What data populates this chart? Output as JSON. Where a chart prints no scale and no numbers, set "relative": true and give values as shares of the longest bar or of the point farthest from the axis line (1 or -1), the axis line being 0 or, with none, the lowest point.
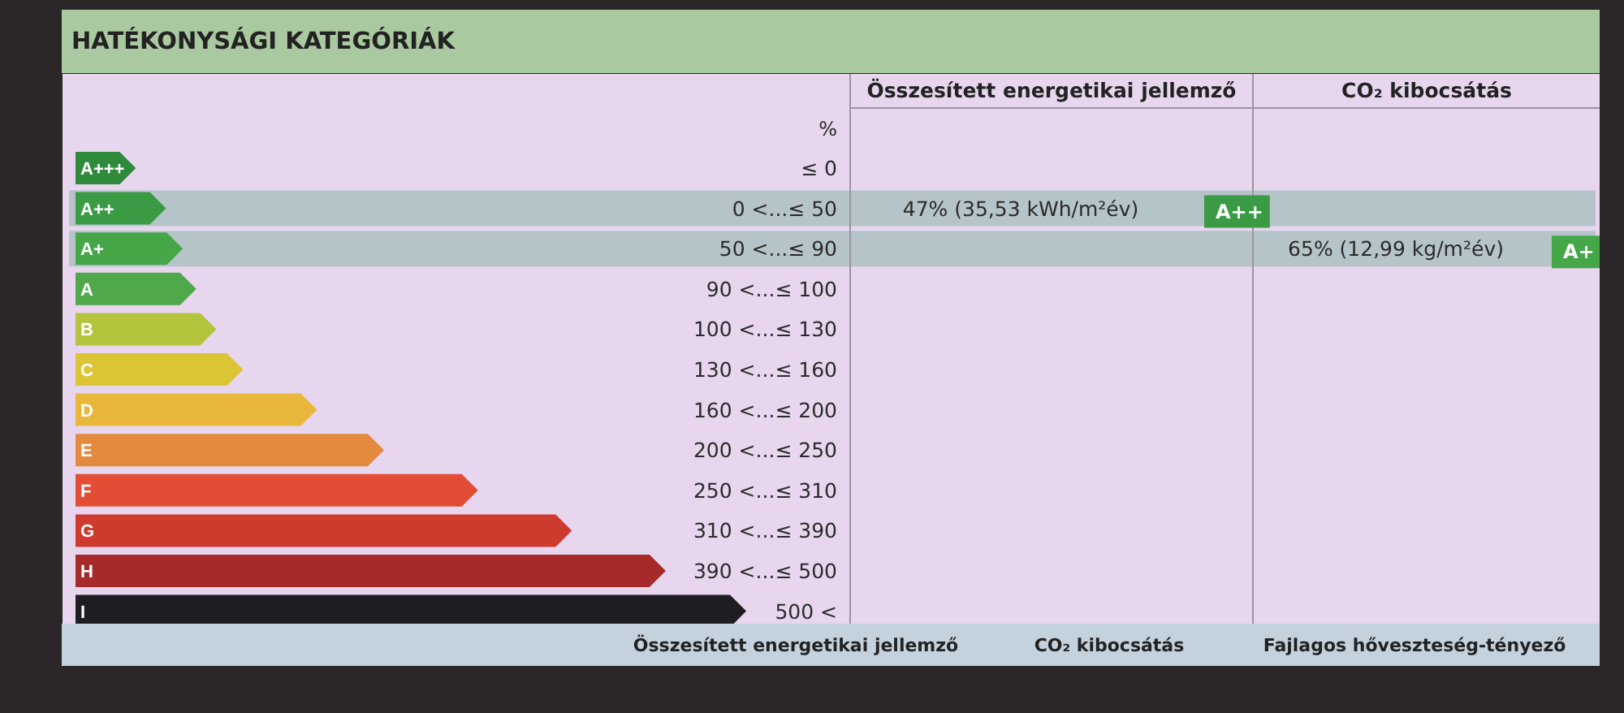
{
  "chart_data": {
    "type": "bar",
    "orientation": "horizontal",
    "relative": true,
    "title": "HATÉKONYSÁGI KATEGÓRIÁK",
    "categories": [
      "A+++",
      "A++",
      "A+",
      "A",
      "B",
      "C",
      "D",
      "E",
      "F",
      "G",
      "H",
      "I"
    ],
    "values": [
      0.09,
      0.135,
      0.16,
      0.18,
      0.21,
      0.25,
      0.36,
      0.46,
      0.6,
      0.74,
      0.88,
      1
    ],
    "colors": [
      "#2f8a3c",
      "#3a9b44",
      "#45a748",
      "#4fa84a",
      "#b3c43c",
      "#dcc535",
      "#e9b83a",
      "#e38a3f",
      "#e44d35",
      "#cf3a2f",
      "#a62a2a",
      "#1f1d22"
    ],
    "bands": [
      {
        "axis": "y",
        "from": "A++",
        "to": "A++",
        "label": "47% (35,53 kWh/m²év)",
        "color": "#b5c4c9"
      },
      {
        "axis": "y",
        "from": "A+",
        "to": "A+",
        "label": "65% (12,99 kg/m²év)",
        "color": "#b5c4c9"
      }
    ],
    "annotations": [
      "%",
      "≤ 0",
      "0 <...≤ 50",
      "50 <...≤ 90",
      "90 <...≤ 100",
      "100 <...≤ 130",
      "130 <...≤ 160",
      "160 <...≤ 200",
      "200 <...≤ 250",
      "250 <...≤ 310",
      "310 <...≤ 390",
      "390 <...≤ 500",
      "500 <",
      "Összesített energetikai jellemző",
      "CO₂ kibocsátás",
      "Összesített energetikai jellemző",
      "CO₂ kibocsátás",
      "Fajlagos hőveszteség-tényező"
    ]
  }
}
